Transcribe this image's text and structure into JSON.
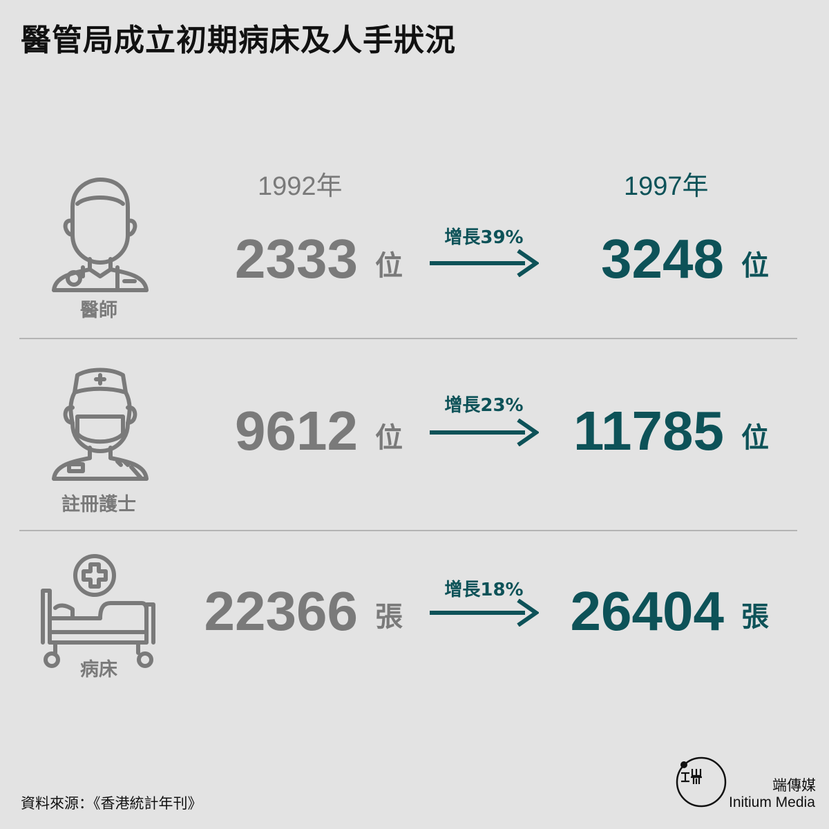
{
  "title": "醫管局成立初期病床及人手狀況",
  "years": {
    "start": "1992年",
    "end": "1997年"
  },
  "rows": [
    {
      "label": "醫師",
      "icon": "doctor-icon",
      "old_value": "2333",
      "new_value": "3248",
      "unit": "位",
      "growth": "增長39%"
    },
    {
      "label": "註冊護士",
      "icon": "nurse-icon",
      "old_value": "9612",
      "new_value": "11785",
      "unit": "位",
      "growth": "增長23%"
    },
    {
      "label": "病床",
      "icon": "hospital-bed-icon",
      "old_value": "22366",
      "new_value": "26404",
      "unit": "張",
      "growth": "增長18%"
    }
  ],
  "source": "資料來源：《香港統計年刊》",
  "logo": {
    "name_cn": "端傳媒",
    "name_en": "Initium Media",
    "icon": "initium-logo-icon"
  },
  "colors": {
    "background": "#e3e3e3",
    "old": "#7a7a7a",
    "new": "#0d5258"
  }
}
